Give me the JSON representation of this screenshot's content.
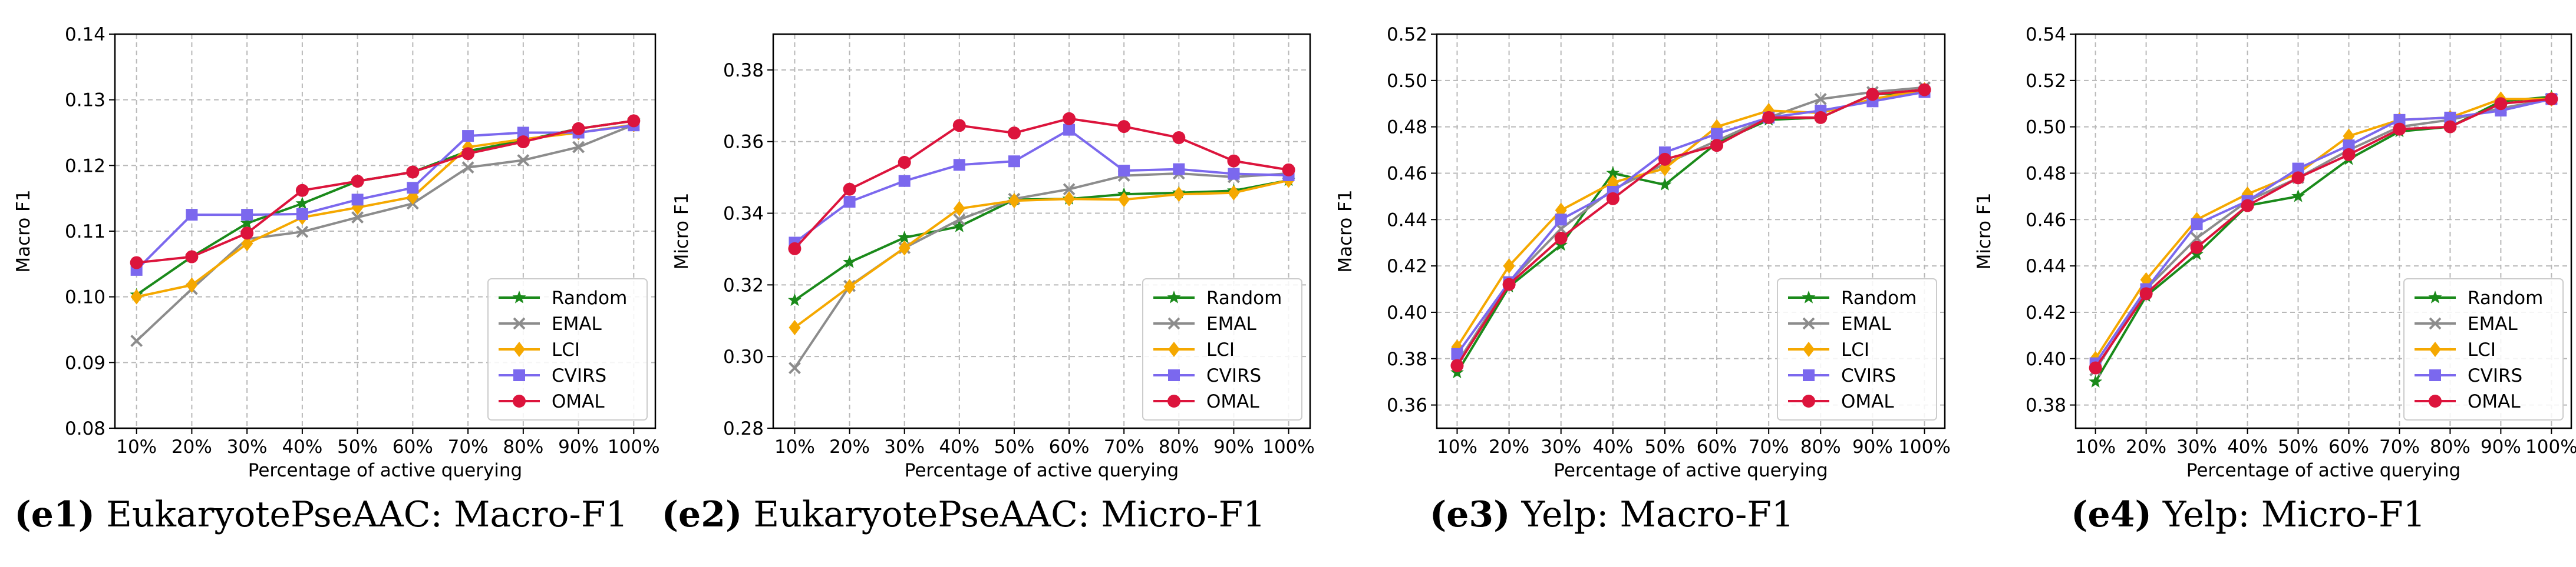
{
  "colors": {
    "Random": "#1a8a1a",
    "EMAL": "#8c8c8c",
    "LCI": "#f5a800",
    "CVIRS": "#7b68ee",
    "OMAL": "#dc143c"
  },
  "chart_data": [
    {
      "type": "line",
      "title": "",
      "xlabel": "Percentage of active querying",
      "ylabel": "Macro F1",
      "categories": [
        "10%",
        "20%",
        "30%",
        "40%",
        "50%",
        "60%",
        "70%",
        "80%",
        "90%",
        "100%"
      ],
      "ylim": [
        0.08,
        0.14
      ],
      "yticks": [
        0.08,
        0.09,
        0.1,
        0.11,
        0.12,
        0.13,
        0.14
      ],
      "ytick_labels": [
        "0.08",
        "0.09",
        "0.10",
        "0.11",
        "0.12",
        "0.13",
        "0.14"
      ],
      "grid": true,
      "legend": "lower-right",
      "series": [
        {
          "name": "Random",
          "values": [
            0.1003,
            0.1061,
            0.1112,
            0.1142,
            0.1176,
            0.119,
            0.1222,
            0.1238,
            0.1256,
            0.1268
          ]
        },
        {
          "name": "EMAL",
          "values": [
            0.0933,
            0.1012,
            0.1088,
            0.1099,
            0.1121,
            0.1142,
            0.1197,
            0.1208,
            0.1228,
            0.1262
          ]
        },
        {
          "name": "LCI",
          "values": [
            0.1,
            0.1018,
            0.1081,
            0.1121,
            0.1136,
            0.1152,
            0.1228,
            0.124,
            0.125,
            0.1262
          ]
        },
        {
          "name": "CVIRS",
          "values": [
            0.1041,
            0.1125,
            0.1125,
            0.1126,
            0.1148,
            0.1166,
            0.1245,
            0.125,
            0.125,
            0.1261
          ]
        },
        {
          "name": "OMAL",
          "values": [
            0.1052,
            0.1061,
            0.1097,
            0.1162,
            0.1176,
            0.119,
            0.1218,
            0.1236,
            0.1256,
            0.1268
          ]
        }
      ],
      "caption_label": "(e1)",
      "caption_text": " EukaryotePseAAC: Macro-F1"
    },
    {
      "type": "line",
      "title": "",
      "xlabel": "Percentage of active querying",
      "ylabel": "Micro F1",
      "categories": [
        "10%",
        "20%",
        "30%",
        "40%",
        "50%",
        "60%",
        "70%",
        "80%",
        "90%",
        "100%"
      ],
      "ylim": [
        0.28,
        0.39
      ],
      "yticks": [
        0.28,
        0.3,
        0.32,
        0.34,
        0.36,
        0.38
      ],
      "ytick_labels": [
        "0.28",
        "0.30",
        "0.32",
        "0.34",
        "0.36",
        "0.38"
      ],
      "grid": true,
      "legend": "lower-right",
      "series": [
        {
          "name": "Random",
          "values": [
            0.3157,
            0.3263,
            0.3332,
            0.3363,
            0.3438,
            0.344,
            0.3453,
            0.3457,
            0.3463,
            0.3492
          ]
        },
        {
          "name": "EMAL",
          "values": [
            0.2968,
            0.3197,
            0.3303,
            0.3382,
            0.344,
            0.3467,
            0.3505,
            0.3511,
            0.3501,
            0.3511
          ]
        },
        {
          "name": "LCI",
          "values": [
            0.3081,
            0.3195,
            0.3303,
            0.3413,
            0.3435,
            0.344,
            0.3438,
            0.3453,
            0.3457,
            0.3492
          ]
        },
        {
          "name": "CVIRS",
          "values": [
            0.3318,
            0.3432,
            0.349,
            0.3535,
            0.3545,
            0.3633,
            0.3519,
            0.3523,
            0.351,
            0.3506
          ]
        },
        {
          "name": "OMAL",
          "values": [
            0.3301,
            0.3467,
            0.3542,
            0.3645,
            0.3624,
            0.3664,
            0.3642,
            0.3611,
            0.3546,
            0.3521
          ]
        }
      ],
      "caption_label": "(e2)",
      "caption_text": " EukaryotePseAAC: Micro-F1"
    },
    {
      "type": "line",
      "title": "",
      "xlabel": "Percentage of active querying",
      "ylabel": "Macro F1",
      "categories": [
        "10%",
        "20%",
        "30%",
        "40%",
        "50%",
        "60%",
        "70%",
        "80%",
        "90%",
        "100%"
      ],
      "ylim": [
        0.35,
        0.52
      ],
      "yticks": [
        0.36,
        0.38,
        0.4,
        0.42,
        0.44,
        0.46,
        0.48,
        0.5,
        0.52
      ],
      "ytick_labels": [
        "0.36",
        "0.38",
        "0.40",
        "0.42",
        "0.44",
        "0.46",
        "0.48",
        "0.50",
        "0.52"
      ],
      "grid": true,
      "legend": "lower-right",
      "series": [
        {
          "name": "Random",
          "values": [
            0.374,
            0.411,
            0.429,
            0.46,
            0.455,
            0.473,
            0.483,
            0.484,
            0.494,
            0.495
          ]
        },
        {
          "name": "EMAL",
          "values": [
            0.378,
            0.413,
            0.436,
            0.453,
            0.464,
            0.474,
            0.484,
            0.492,
            0.495,
            0.497
          ]
        },
        {
          "name": "LCI",
          "values": [
            0.385,
            0.42,
            0.444,
            0.456,
            0.462,
            0.48,
            0.487,
            0.486,
            0.492,
            0.496
          ]
        },
        {
          "name": "CVIRS",
          "values": [
            0.382,
            0.413,
            0.44,
            0.452,
            0.469,
            0.477,
            0.484,
            0.487,
            0.491,
            0.495
          ]
        },
        {
          "name": "OMAL",
          "values": [
            0.377,
            0.412,
            0.432,
            0.449,
            0.466,
            0.472,
            0.484,
            0.484,
            0.494,
            0.496
          ]
        }
      ],
      "caption_label": "(e3)",
      "caption_text": " Yelp: Macro-F1"
    },
    {
      "type": "line",
      "title": "",
      "xlabel": "Percentage of active querying",
      "ylabel": "Micro F1",
      "categories": [
        "10%",
        "20%",
        "30%",
        "40%",
        "50%",
        "60%",
        "70%",
        "80%",
        "90%",
        "100%"
      ],
      "ylim": [
        0.37,
        0.54
      ],
      "yticks": [
        0.38,
        0.4,
        0.42,
        0.44,
        0.46,
        0.48,
        0.5,
        0.52,
        0.54
      ],
      "ytick_labels": [
        "0.38",
        "0.40",
        "0.42",
        "0.44",
        "0.46",
        "0.48",
        "0.50",
        "0.52",
        "0.54"
      ],
      "grid": true,
      "legend": "lower-right",
      "series": [
        {
          "name": "Random",
          "values": [
            0.39,
            0.427,
            0.445,
            0.466,
            0.47,
            0.486,
            0.498,
            0.5,
            0.511,
            0.513
          ]
        },
        {
          "name": "EMAL",
          "values": [
            0.395,
            0.43,
            0.452,
            0.468,
            0.478,
            0.49,
            0.5,
            0.503,
            0.508,
            0.512
          ]
        },
        {
          "name": "LCI",
          "values": [
            0.4,
            0.434,
            0.46,
            0.471,
            0.48,
            0.496,
            0.503,
            0.504,
            0.512,
            0.512
          ]
        },
        {
          "name": "CVIRS",
          "values": [
            0.398,
            0.43,
            0.458,
            0.468,
            0.482,
            0.492,
            0.503,
            0.504,
            0.507,
            0.512
          ]
        },
        {
          "name": "OMAL",
          "values": [
            0.396,
            0.428,
            0.448,
            0.466,
            0.478,
            0.488,
            0.499,
            0.5,
            0.51,
            0.512
          ]
        }
      ],
      "caption_label": "(e4)",
      "caption_text": " Yelp: Micro-F1"
    }
  ]
}
